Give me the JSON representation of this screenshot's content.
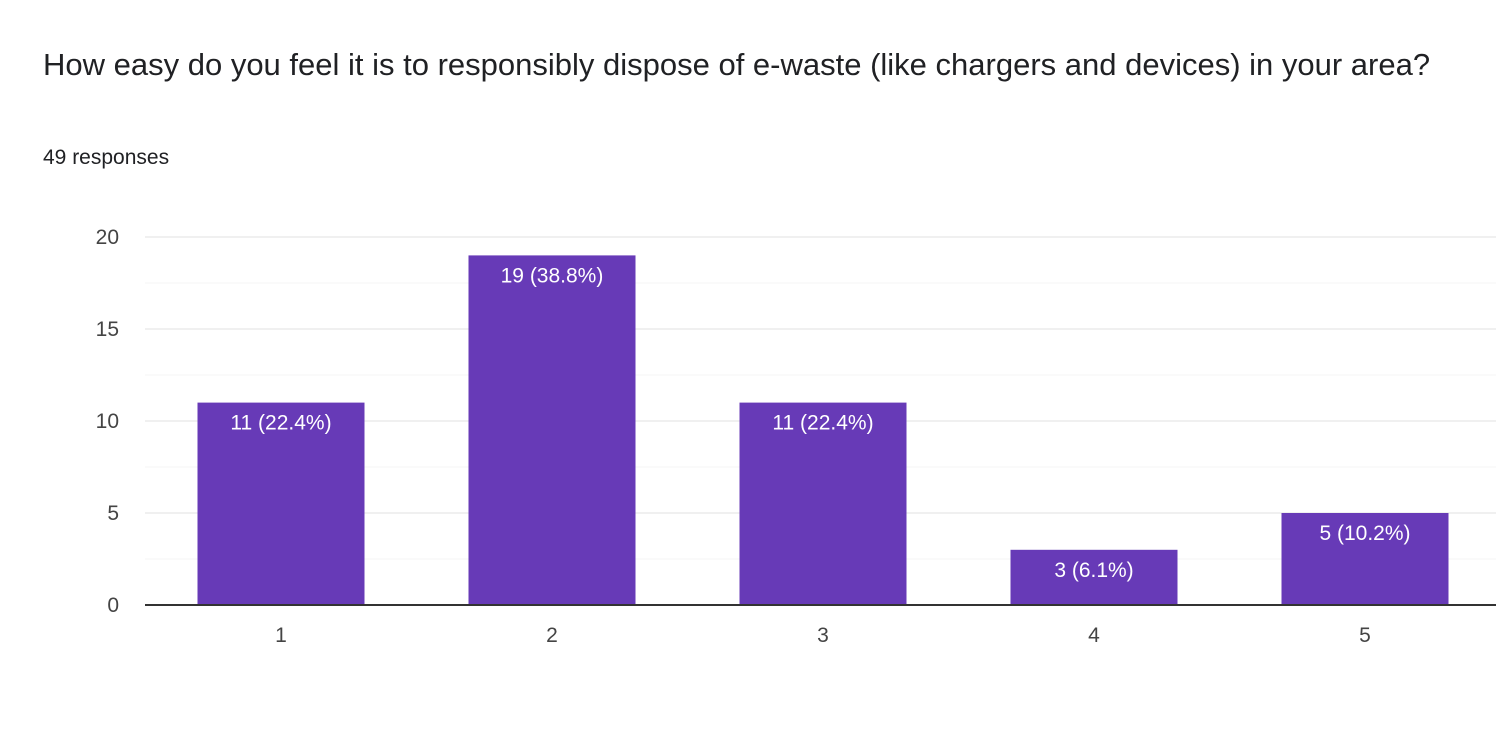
{
  "question": {
    "title": "How easy do you feel it is to responsibly dispose of e-waste (like chargers and devices) in your area?",
    "responses": "49 responses"
  },
  "colors": {
    "bar": "#673ab7",
    "gridline": "#ebebeb",
    "minor_gridline": "#f5f5f5",
    "baseline": "#333333",
    "label_inside": "#ffffff",
    "tick_text": "#444444"
  },
  "chart_data": {
    "type": "bar",
    "title": "",
    "xlabel": "",
    "ylabel": "",
    "categories": [
      "1",
      "2",
      "3",
      "4",
      "5"
    ],
    "values": [
      11,
      19,
      11,
      3,
      5
    ],
    "data_labels": [
      "11 (22.4%)",
      "19 (38.8%)",
      "11 (22.4%)",
      "3 (6.1%)",
      "5 (10.2%)"
    ],
    "ylim": [
      0,
      20
    ],
    "yticks": [
      0,
      5,
      10,
      15,
      20
    ],
    "ytick_labels": [
      "0",
      "5",
      "10",
      "15",
      "20"
    ],
    "grid": true,
    "legend": "none"
  }
}
